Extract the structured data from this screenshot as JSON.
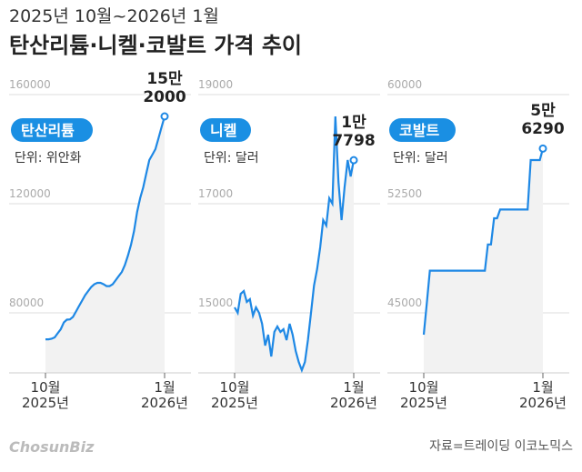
{
  "header": {
    "subtitle": "2025년 10월~2026년 1월",
    "title": "탄산리튬·니켈·코발트 가격 추이"
  },
  "footer": {
    "logo": "ChosunBiz",
    "source": "자료=트레이딩 이코노믹스"
  },
  "chart_data": [
    {
      "type": "line",
      "title": "탄산리튬",
      "subtitle": "단위: 위안화",
      "color": "#1e88e5",
      "grid": true,
      "categories": [
        "10월\n2025년",
        null,
        null,
        null,
        null,
        null,
        null,
        null,
        null,
        null,
        null,
        null,
        null,
        null,
        null,
        null,
        null,
        null,
        null,
        null,
        null,
        null,
        null,
        null,
        null,
        null,
        null,
        null,
        null,
        null,
        null,
        null,
        null,
        null,
        null,
        null,
        null,
        null,
        null,
        "1월\n2026년"
      ],
      "values": [
        70300,
        70300,
        70500,
        71000,
        72500,
        74000,
        76500,
        77500,
        77600,
        78500,
        80500,
        82500,
        84500,
        86500,
        88000,
        89500,
        90500,
        91000,
        91000,
        90500,
        89800,
        89800,
        90500,
        92000,
        93500,
        95000,
        97500,
        101000,
        105000,
        110000,
        117000,
        122000,
        126000,
        131000,
        136000,
        138000,
        140000,
        144000,
        148000,
        152000
      ],
      "value_labels": [
        null,
        null,
        null,
        null,
        null,
        null,
        null,
        null,
        null,
        null,
        null,
        null,
        null,
        null,
        null,
        null,
        null,
        null,
        null,
        null,
        null,
        null,
        null,
        null,
        null,
        null,
        null,
        null,
        null,
        null,
        null,
        null,
        null,
        null,
        null,
        null,
        null,
        null,
        null,
        "15만\n2000"
      ],
      "ylim": [
        58000,
        160000
      ],
      "yticks": [
        80000,
        120000,
        160000
      ]
    },
    {
      "type": "line",
      "title": "니켈",
      "subtitle": "단위: 달러",
      "color": "#1e88e5",
      "grid": true,
      "categories": [
        "10월\n2025년",
        null,
        null,
        null,
        null,
        null,
        null,
        null,
        null,
        null,
        null,
        null,
        null,
        null,
        null,
        null,
        null,
        null,
        null,
        null,
        null,
        null,
        null,
        null,
        null,
        null,
        null,
        null,
        null,
        null,
        null,
        null,
        null,
        null,
        null,
        null,
        null,
        null,
        null,
        "1월\n2026년"
      ],
      "values": [
        15100,
        15000,
        15350,
        15400,
        15200,
        15250,
        14950,
        15100,
        15000,
        14800,
        14400,
        14600,
        14200,
        14650,
        14750,
        14650,
        14700,
        14500,
        14800,
        14600,
        14300,
        14100,
        13950,
        14100,
        14500,
        15000,
        15500,
        15800,
        16200,
        16700,
        16600,
        17100,
        17000,
        18600,
        17400,
        16700,
        17300,
        17800,
        17500,
        17798
      ],
      "value_labels": [
        null,
        null,
        null,
        null,
        null,
        null,
        null,
        null,
        null,
        null,
        null,
        null,
        null,
        null,
        null,
        null,
        null,
        null,
        null,
        null,
        null,
        null,
        null,
        null,
        null,
        null,
        null,
        null,
        null,
        null,
        null,
        null,
        null,
        null,
        null,
        null,
        null,
        null,
        null,
        "1만\n7798"
      ],
      "ylim": [
        13900,
        19000
      ],
      "yticks": [
        15000,
        17000,
        19000
      ]
    },
    {
      "type": "line",
      "title": "코발트",
      "subtitle": "단위: 달러",
      "color": "#1e88e5",
      "grid": true,
      "categories": [
        "10월\n2025년",
        null,
        null,
        null,
        null,
        null,
        null,
        null,
        null,
        null,
        null,
        null,
        null,
        null,
        null,
        null,
        null,
        null,
        null,
        null,
        null,
        null,
        null,
        null,
        null,
        null,
        null,
        null,
        null,
        null,
        null,
        null,
        null,
        null,
        null,
        null,
        null,
        null,
        null,
        "1월\n2026년"
      ],
      "values": [
        43500,
        45700,
        47900,
        47900,
        47900,
        47900,
        47900,
        47900,
        47900,
        47900,
        47900,
        47900,
        47900,
        47900,
        47900,
        47900,
        47900,
        47900,
        47900,
        47900,
        47900,
        49700,
        49700,
        51500,
        51500,
        52100,
        52100,
        52100,
        52100,
        52100,
        52100,
        52100,
        52100,
        52100,
        52100,
        55500,
        55500,
        55500,
        55500,
        56290
      ],
      "value_labels": [
        null,
        null,
        null,
        null,
        null,
        null,
        null,
        null,
        null,
        null,
        null,
        null,
        null,
        null,
        null,
        null,
        null,
        null,
        null,
        null,
        null,
        null,
        null,
        null,
        null,
        null,
        null,
        null,
        null,
        null,
        null,
        null,
        null,
        null,
        null,
        null,
        null,
        null,
        null,
        "5만\n6290"
      ],
      "ylim": [
        40875,
        60000
      ],
      "yticks": [
        45000,
        52500,
        60000
      ]
    }
  ]
}
